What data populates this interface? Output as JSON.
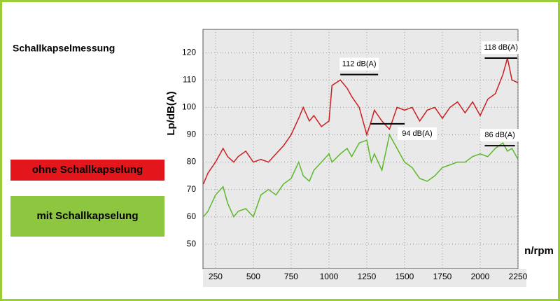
{
  "chart_data": {
    "type": "line",
    "title": "Schallkapselmessung",
    "x_label": "n/rpm",
    "y_label": "Lp/dB(A)",
    "x": [
      170,
      200,
      250,
      300,
      330,
      370,
      400,
      450,
      500,
      550,
      600,
      650,
      700,
      750,
      800,
      830,
      870,
      900,
      950,
      1000,
      1020,
      1075,
      1120,
      1150,
      1200,
      1250,
      1280,
      1300,
      1350,
      1400,
      1450,
      1500,
      1550,
      1600,
      1650,
      1700,
      1750,
      1800,
      1850,
      1900,
      1950,
      2000,
      2050,
      2100,
      2150,
      2180,
      2210,
      2250
    ],
    "series": [
      {
        "name": "ohne Schallkapselung",
        "color": "#cc1f1f",
        "legend_color": "#e3171b",
        "values": [
          72,
          76,
          80,
          85,
          82,
          80,
          82,
          84,
          80,
          81,
          80,
          83,
          86,
          90,
          96,
          100,
          95,
          97,
          93,
          95,
          108,
          110,
          107,
          104,
          100,
          90,
          95,
          99,
          95,
          92,
          100,
          99,
          100,
          95,
          99,
          100,
          96,
          100,
          102,
          98,
          102,
          97,
          103,
          105,
          112,
          118,
          110,
          109
        ]
      },
      {
        "name": "mit Schallkapselung",
        "color": "#5cb82a",
        "legend_color": "#8dc63f",
        "values": [
          60,
          62,
          68,
          71,
          65,
          60,
          62,
          63,
          60,
          68,
          70,
          68,
          72,
          74,
          80,
          75,
          73,
          77,
          80,
          83,
          80,
          83,
          85,
          82,
          87,
          88,
          80,
          83,
          77,
          90,
          85,
          80,
          78,
          74,
          73,
          75,
          78,
          79,
          80,
          80,
          82,
          83,
          82,
          85,
          87,
          84,
          85,
          81
        ]
      }
    ],
    "annotations": [
      {
        "label": "112 dB(A)",
        "value": 112,
        "x": [
          1075,
          1325
        ]
      },
      {
        "label": "94 dB(A)",
        "value": 94,
        "x": [
          1275,
          1500
        ]
      },
      {
        "label": "118 dB(A)",
        "value": 118,
        "x": [
          2030,
          2245
        ]
      },
      {
        "label": "86 dB(A)",
        "value": 86,
        "x": [
          2030,
          2230
        ]
      }
    ],
    "xlim": [
      167,
      2250
    ],
    "ylim": [
      41,
      128.5
    ],
    "xticks": [
      250,
      500,
      750,
      1000,
      1250,
      1500,
      1750,
      2000,
      2250
    ],
    "yticks": [
      50,
      60,
      70,
      80,
      90,
      100,
      110,
      120
    ],
    "grid": true,
    "legend_position": "left"
  }
}
